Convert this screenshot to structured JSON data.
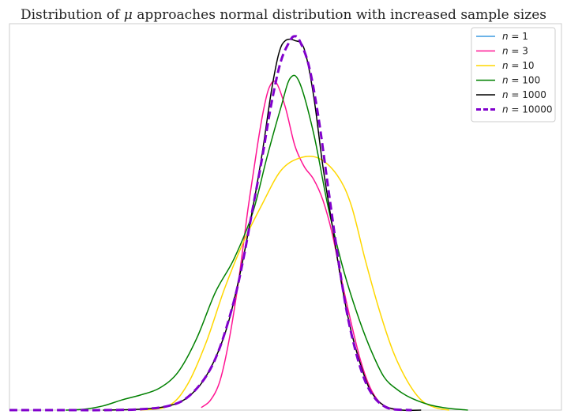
{
  "chart_data": {
    "type": "line",
    "title_prefix": "Distribution of ",
    "title_symbol": "μ",
    "title_suffix": " approaches normal distribution with increased sample sizes",
    "xlabel": "",
    "ylabel": "",
    "x_range": [
      -3.0,
      2.9
    ],
    "y_range": [
      0,
      0.46
    ],
    "grid": false,
    "legend_position": "top-right",
    "series": [
      {
        "name": "1",
        "color": "#3b9ae1",
        "dashed": false,
        "points": []
      },
      {
        "name": "3",
        "color": "#ff1493",
        "dashed": false,
        "points": [
          [
            -0.95,
            0.003
          ],
          [
            -0.85,
            0.012
          ],
          [
            -0.75,
            0.035
          ],
          [
            -0.65,
            0.085
          ],
          [
            -0.55,
            0.155
          ],
          [
            -0.45,
            0.24
          ],
          [
            -0.35,
            0.315
          ],
          [
            -0.28,
            0.36
          ],
          [
            -0.22,
            0.385
          ],
          [
            -0.15,
            0.39
          ],
          [
            -0.05,
            0.36
          ],
          [
            0.05,
            0.315
          ],
          [
            0.15,
            0.29
          ],
          [
            0.25,
            0.275
          ],
          [
            0.35,
            0.25
          ],
          [
            0.45,
            0.21
          ],
          [
            0.55,
            0.155
          ],
          [
            0.65,
            0.105
          ],
          [
            0.75,
            0.06
          ],
          [
            0.85,
            0.028
          ],
          [
            0.95,
            0.01
          ],
          [
            1.05,
            0.003
          ],
          [
            1.15,
            0.0
          ]
        ]
      },
      {
        "name": "10",
        "color": "#ffd700",
        "dashed": false,
        "points": [
          [
            -1.6,
            0.0
          ],
          [
            -1.3,
            0.005
          ],
          [
            -1.1,
            0.03
          ],
          [
            -0.9,
            0.08
          ],
          [
            -0.7,
            0.145
          ],
          [
            -0.5,
            0.2
          ],
          [
            -0.3,
            0.245
          ],
          [
            -0.1,
            0.285
          ],
          [
            0.1,
            0.3
          ],
          [
            0.3,
            0.3
          ],
          [
            0.5,
            0.28
          ],
          [
            0.65,
            0.245
          ],
          [
            0.8,
            0.18
          ],
          [
            0.95,
            0.12
          ],
          [
            1.1,
            0.07
          ],
          [
            1.25,
            0.035
          ],
          [
            1.4,
            0.012
          ],
          [
            1.55,
            0.003
          ],
          [
            1.7,
            0.0
          ]
        ]
      },
      {
        "name": "100",
        "color": "#008000",
        "dashed": false,
        "points": [
          [
            -2.4,
            0.0
          ],
          [
            -2.2,
            0.001
          ],
          [
            -2.0,
            0.005
          ],
          [
            -1.8,
            0.012
          ],
          [
            -1.6,
            0.018
          ],
          [
            -1.4,
            0.026
          ],
          [
            -1.2,
            0.045
          ],
          [
            -1.0,
            0.085
          ],
          [
            -0.8,
            0.14
          ],
          [
            -0.6,
            0.18
          ],
          [
            -0.4,
            0.235
          ],
          [
            -0.25,
            0.3
          ],
          [
            -0.1,
            0.36
          ],
          [
            0.0,
            0.395
          ],
          [
            0.1,
            0.39
          ],
          [
            0.25,
            0.33
          ],
          [
            0.4,
            0.245
          ],
          [
            0.55,
            0.175
          ],
          [
            0.7,
            0.12
          ],
          [
            0.85,
            0.075
          ],
          [
            1.0,
            0.04
          ],
          [
            1.15,
            0.024
          ],
          [
            1.3,
            0.014
          ],
          [
            1.5,
            0.006
          ],
          [
            1.7,
            0.002
          ],
          [
            1.9,
            0.0
          ]
        ]
      },
      {
        "name": "1000",
        "color": "#000000",
        "dashed": false,
        "points": [
          [
            -2.0,
            0.0
          ],
          [
            -1.6,
            0.001
          ],
          [
            -1.3,
            0.005
          ],
          [
            -1.1,
            0.015
          ],
          [
            -0.9,
            0.04
          ],
          [
            -0.7,
            0.09
          ],
          [
            -0.55,
            0.155
          ],
          [
            -0.4,
            0.24
          ],
          [
            -0.3,
            0.305
          ],
          [
            -0.2,
            0.38
          ],
          [
            -0.12,
            0.425
          ],
          [
            -0.05,
            0.44
          ],
          [
            0.05,
            0.44
          ],
          [
            0.15,
            0.43
          ],
          [
            0.25,
            0.375
          ],
          [
            0.35,
            0.29
          ],
          [
            0.45,
            0.22
          ],
          [
            0.55,
            0.15
          ],
          [
            0.65,
            0.095
          ],
          [
            0.75,
            0.055
          ],
          [
            0.85,
            0.025
          ],
          [
            0.95,
            0.01
          ],
          [
            1.05,
            0.003
          ],
          [
            1.2,
            0.0
          ],
          [
            1.4,
            0.0
          ]
        ]
      },
      {
        "name": "10000",
        "color": "#8000cc",
        "dashed": true,
        "points": [
          [
            -3.0,
            0.0
          ],
          [
            -2.4,
            0.0
          ],
          [
            -2.0,
            0.0
          ],
          [
            -1.6,
            0.001
          ],
          [
            -1.3,
            0.005
          ],
          [
            -1.1,
            0.015
          ],
          [
            -0.9,
            0.04
          ],
          [
            -0.75,
            0.075
          ],
          [
            -0.6,
            0.13
          ],
          [
            -0.5,
            0.18
          ],
          [
            -0.4,
            0.24
          ],
          [
            -0.3,
            0.3
          ],
          [
            -0.2,
            0.365
          ],
          [
            -0.1,
            0.415
          ],
          [
            0.0,
            0.44
          ],
          [
            0.05,
            0.445
          ],
          [
            0.1,
            0.44
          ],
          [
            0.2,
            0.41
          ],
          [
            0.3,
            0.35
          ],
          [
            0.4,
            0.27
          ],
          [
            0.5,
            0.19
          ],
          [
            0.6,
            0.12
          ],
          [
            0.7,
            0.07
          ],
          [
            0.8,
            0.035
          ],
          [
            0.9,
            0.015
          ],
          [
            1.0,
            0.005
          ],
          [
            1.1,
            0.001
          ],
          [
            1.3,
            0.0
          ]
        ]
      }
    ]
  }
}
